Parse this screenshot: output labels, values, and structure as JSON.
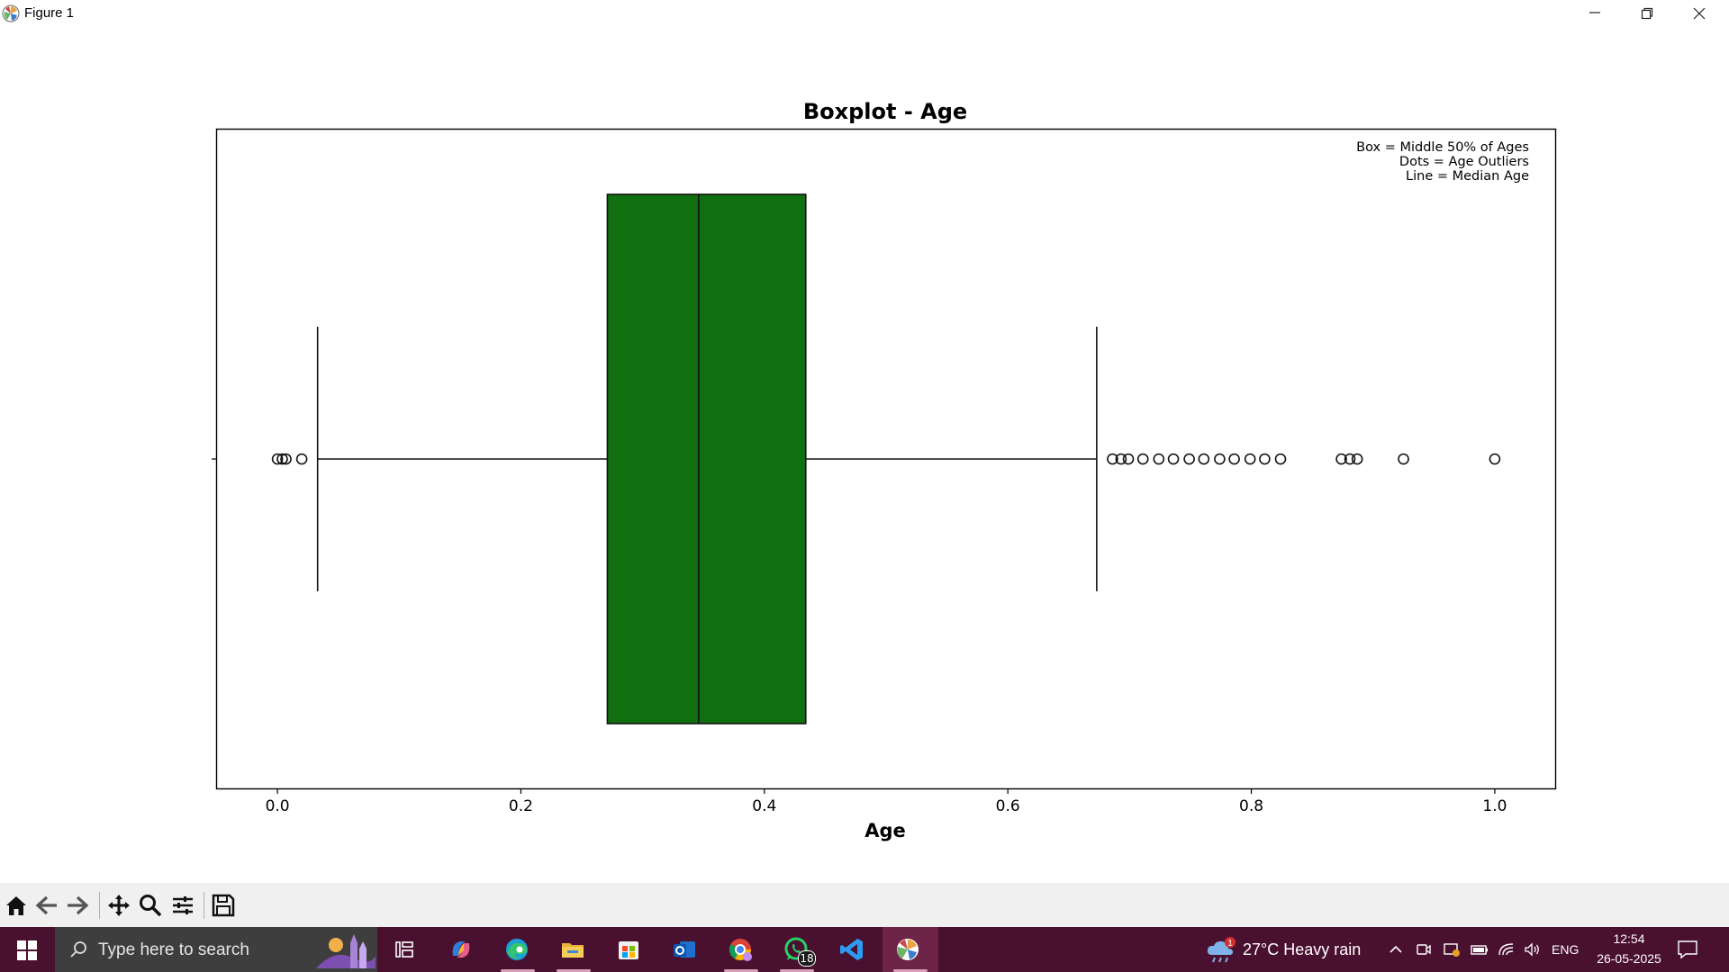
{
  "window": {
    "title": "Figure 1"
  },
  "colors": {
    "box_fill": "#107010",
    "taskbar": "#4a1030",
    "toolbar": "#f0f0f0"
  },
  "chart_data": {
    "type": "boxplot",
    "title": "Boxplot - Age",
    "xlabel": "Age",
    "ylabel": "",
    "xlim": [
      -0.05,
      1.05
    ],
    "xticks": [
      0.0,
      0.2,
      0.4,
      0.6,
      0.8,
      1.0
    ],
    "xtick_labels": [
      "0.0",
      "0.2",
      "0.4",
      "0.6",
      "0.8",
      "1.0"
    ],
    "grid": false,
    "legend": {
      "placement": "upper right",
      "lines": [
        "Box = Middle 50% of Ages",
        "Dots = Age Outliers",
        "Line = Median Age"
      ]
    },
    "box": {
      "whisker_low": 0.033,
      "q1": 0.271,
      "median": 0.346,
      "q3": 0.434,
      "whisker_high": 0.673
    },
    "outliers": [
      0.0,
      0.004,
      0.007,
      0.02,
      0.686,
      0.693,
      0.699,
      0.711,
      0.724,
      0.736,
      0.749,
      0.761,
      0.774,
      0.786,
      0.799,
      0.811,
      0.824,
      0.874,
      0.881,
      0.887,
      0.925,
      1.0
    ]
  },
  "toolbar": {
    "tools": [
      "home-icon",
      "back-icon",
      "forward-icon",
      "pan-icon",
      "zoom-icon",
      "configure-subplots-icon",
      "save-icon"
    ]
  },
  "taskbar": {
    "search_placeholder": "Type here to search",
    "whatsapp_badge": "18",
    "weather_alert": "1",
    "weather": "27°C  Heavy rain",
    "language": "ENG",
    "time": "12:54",
    "date": "26-05-2025"
  }
}
